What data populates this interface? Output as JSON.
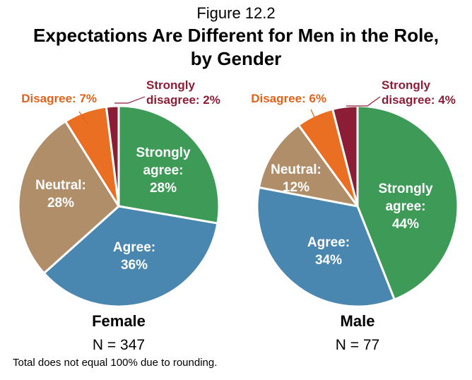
{
  "figure_label": "Figure 12.2",
  "title_line1": "Expectations Are Different for Men in the Role,",
  "title_line2": "by Gender",
  "note": "Total does not equal 100% due to rounding.",
  "colors": {
    "strongly_agree": "#3e9a57",
    "agree": "#4a87b0",
    "neutral": "#b08e6a",
    "disagree": "#ea6f22",
    "strongly_disagree": "#8b1e36",
    "disagree_text": "#e3621b",
    "strongly_disagree_text": "#8b1e36"
  },
  "chart_data": [
    {
      "type": "pie",
      "name": "Female",
      "n_label": "N = 347",
      "slices": [
        {
          "key": "strongly_agree",
          "label_lines": [
            "Strongly",
            "agree:",
            "28%"
          ],
          "value": 28
        },
        {
          "key": "agree",
          "label_lines": [
            "Agree:",
            "36%"
          ],
          "value": 36
        },
        {
          "key": "neutral",
          "label_lines": [
            "Neutral:",
            "28%"
          ],
          "value": 28
        },
        {
          "key": "disagree",
          "label_lines": [
            "Disagree: 7%"
          ],
          "value": 7
        },
        {
          "key": "strongly_disagree",
          "label_lines": [
            "Strongly",
            "disagree: 2%"
          ],
          "value": 2
        }
      ]
    },
    {
      "type": "pie",
      "name": "Male",
      "n_label": "N = 77",
      "slices": [
        {
          "key": "strongly_agree",
          "label_lines": [
            "Strongly",
            "agree:",
            "44%"
          ],
          "value": 44
        },
        {
          "key": "agree",
          "label_lines": [
            "Agree:",
            "34%"
          ],
          "value": 34
        },
        {
          "key": "neutral",
          "label_lines": [
            "Neutral:",
            "12%"
          ],
          "value": 12
        },
        {
          "key": "disagree",
          "label_lines": [
            "Disagree: 6%"
          ],
          "value": 6
        },
        {
          "key": "strongly_disagree",
          "label_lines": [
            "Strongly",
            "disagree: 4%"
          ],
          "value": 4
        }
      ]
    }
  ]
}
